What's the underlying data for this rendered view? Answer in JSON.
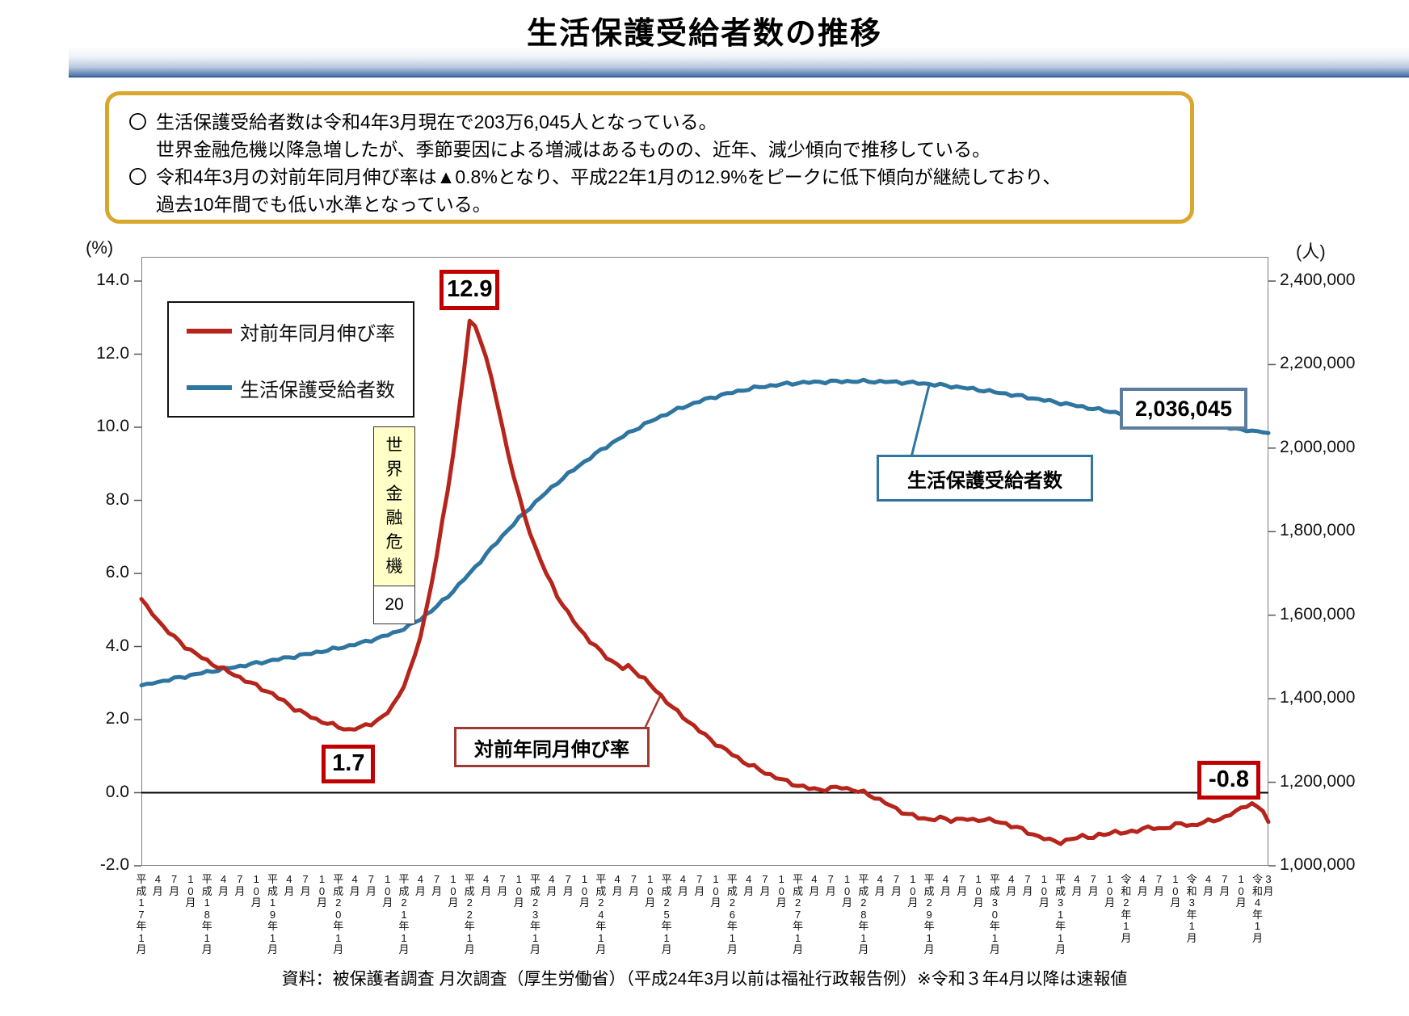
{
  "title": "生活保護受給者数の推移",
  "summary": {
    "bullet_marker": "〇",
    "b1l1": "生活保護受給者数は令和4年3月現在で203万6,045人となっている。",
    "b1l2": "世界金融危機以降急増したが、季節要因による増減はあるものの、近年、減少傾向で推移している。",
    "b2l1": "令和4年3月の対前年同月伸び率は▲0.8%となり、平成22年1月の12.9%をピークに低下傾向が継続しており、",
    "b2l2": "過去10年間でも低い水準となっている。"
  },
  "chart_data": {
    "type": "line",
    "title": "生活保護受給者数の推移",
    "left_axis": {
      "unit": "(%)",
      "min": -2.0,
      "max": 14.0,
      "ticks": [
        "14.0",
        "12.0",
        "10.0",
        "8.0",
        "6.0",
        "4.0",
        "2.0",
        "0.0",
        "-2.0"
      ]
    },
    "right_axis": {
      "unit": "(人)",
      "min": 1000000,
      "max": 2400000,
      "ticks": [
        "2,400,000",
        "2,200,000",
        "2,000,000",
        "1,800,000",
        "1,600,000",
        "1,400,000",
        "1,200,000",
        "1,000,000"
      ]
    },
    "x_start": "平成17年1月",
    "x_end": "令和4年3月",
    "months_total": 207,
    "x_labels": [
      "平成17年1月",
      "4月",
      "7月",
      "10月",
      "平成18年1月",
      "4月",
      "7月",
      "10月",
      "平成19年1月",
      "4月",
      "7月",
      "10月",
      "平成20年1月",
      "4月",
      "7月",
      "10月",
      "平成21年1月",
      "4月",
      "7月",
      "10月",
      "平成22年1月",
      "4月",
      "7月",
      "10月",
      "平成23年1月",
      "4月",
      "7月",
      "10月",
      "平成24年1月",
      "4月",
      "7月",
      "10月",
      "平成25年1月",
      "4月",
      "7月",
      "10月",
      "平成26年1月",
      "4月",
      "7月",
      "10月",
      "平成27年1月",
      "4月",
      "7月",
      "10月",
      "平成28年1月",
      "4月",
      "7月",
      "10月",
      "平成29年1月",
      "4月",
      "7月",
      "10月",
      "平成30年1月",
      "4月",
      "7月",
      "10月",
      "平成31年1月",
      "4月",
      "7月",
      "10月",
      "令和2年1月",
      "4月",
      "7月",
      "10月",
      "令和3年1月",
      "4月",
      "7月",
      "10月",
      "令和4年1月",
      "3月"
    ],
    "legend": [
      "対前年同月伸び率",
      "生活保護受給者数"
    ],
    "colors": {
      "growth_rate": "#B5251C",
      "recipients": "#2E75A0",
      "zero_line": "#000000",
      "annotation_red": "#C00000",
      "annotation_blue_gray": "#5B7E9E"
    },
    "series": [
      {
        "name": "対前年同月伸び率",
        "axis": "left",
        "unit": "%",
        "points": [
          [
            0,
            5.3
          ],
          [
            2,
            4.9
          ],
          [
            4,
            4.55
          ],
          [
            6,
            4.25
          ],
          [
            8,
            4.0
          ],
          [
            10,
            3.8
          ],
          [
            12,
            3.6
          ],
          [
            14,
            3.45
          ],
          [
            16,
            3.3
          ],
          [
            18,
            3.15
          ],
          [
            20,
            3.0
          ],
          [
            22,
            2.85
          ],
          [
            24,
            2.7
          ],
          [
            26,
            2.5
          ],
          [
            28,
            2.3
          ],
          [
            30,
            2.15
          ],
          [
            32,
            2.0
          ],
          [
            34,
            1.9
          ],
          [
            36,
            1.8
          ],
          [
            38,
            1.72
          ],
          [
            40,
            1.78
          ],
          [
            42,
            1.9
          ],
          [
            44,
            2.05
          ],
          [
            45,
            2.2
          ],
          [
            46,
            2.4
          ],
          [
            47,
            2.65
          ],
          [
            48,
            2.95
          ],
          [
            49,
            3.3
          ],
          [
            50,
            3.75
          ],
          [
            51,
            4.3
          ],
          [
            52,
            4.95
          ],
          [
            53,
            5.7
          ],
          [
            54,
            6.5
          ],
          [
            55,
            7.4
          ],
          [
            56,
            8.3
          ],
          [
            57,
            9.3
          ],
          [
            58,
            10.4
          ],
          [
            59,
            11.6
          ],
          [
            60,
            12.9
          ],
          [
            61,
            12.75
          ],
          [
            62,
            12.4
          ],
          [
            63,
            11.9
          ],
          [
            64,
            11.3
          ],
          [
            65,
            10.7
          ],
          [
            66,
            10.0
          ],
          [
            67,
            9.3
          ],
          [
            68,
            8.7
          ],
          [
            69,
            8.1
          ],
          [
            70,
            7.6
          ],
          [
            71,
            7.15
          ],
          [
            72,
            6.7
          ],
          [
            74,
            6.0
          ],
          [
            76,
            5.4
          ],
          [
            78,
            4.9
          ],
          [
            80,
            4.5
          ],
          [
            82,
            4.15
          ],
          [
            84,
            3.85
          ],
          [
            86,
            3.6
          ],
          [
            88,
            3.4
          ],
          [
            89,
            3.45
          ],
          [
            90,
            3.35
          ],
          [
            92,
            3.1
          ],
          [
            94,
            2.8
          ],
          [
            96,
            2.5
          ],
          [
            98,
            2.2
          ],
          [
            100,
            1.95
          ],
          [
            102,
            1.7
          ],
          [
            104,
            1.45
          ],
          [
            106,
            1.25
          ],
          [
            108,
            1.05
          ],
          [
            110,
            0.85
          ],
          [
            112,
            0.7
          ],
          [
            114,
            0.55
          ],
          [
            116,
            0.42
          ],
          [
            118,
            0.3
          ],
          [
            120,
            0.2
          ],
          [
            122,
            0.12
          ],
          [
            124,
            0.08
          ],
          [
            126,
            0.12
          ],
          [
            128,
            0.15
          ],
          [
            130,
            0.08
          ],
          [
            132,
            0.0
          ],
          [
            134,
            -0.12
          ],
          [
            136,
            -0.28
          ],
          [
            138,
            -0.45
          ],
          [
            140,
            -0.58
          ],
          [
            142,
            -0.68
          ],
          [
            144,
            -0.73
          ],
          [
            146,
            -0.7
          ],
          [
            148,
            -0.75
          ],
          [
            150,
            -0.71
          ],
          [
            152,
            -0.76
          ],
          [
            154,
            -0.72
          ],
          [
            156,
            -0.78
          ],
          [
            158,
            -0.85
          ],
          [
            160,
            -0.95
          ],
          [
            162,
            -1.08
          ],
          [
            164,
            -1.2
          ],
          [
            166,
            -1.3
          ],
          [
            168,
            -1.35
          ],
          [
            170,
            -1.28
          ],
          [
            172,
            -1.18
          ],
          [
            174,
            -1.22
          ],
          [
            176,
            -1.14
          ],
          [
            178,
            -1.06
          ],
          [
            180,
            -1.12
          ],
          [
            182,
            -1.02
          ],
          [
            184,
            -0.95
          ],
          [
            186,
            -1.0
          ],
          [
            188,
            -0.92
          ],
          [
            190,
            -0.85
          ],
          [
            192,
            -0.9
          ],
          [
            194,
            -0.82
          ],
          [
            196,
            -0.75
          ],
          [
            198,
            -0.68
          ],
          [
            200,
            -0.52
          ],
          [
            201,
            -0.42
          ],
          [
            202,
            -0.35
          ],
          [
            203,
            -0.3
          ],
          [
            204,
            -0.4
          ],
          [
            205,
            -0.5
          ],
          [
            206,
            -0.8
          ]
        ]
      },
      {
        "name": "生活保護受給者数",
        "axis": "right",
        "unit": "人",
        "points": [
          [
            0,
            1432000
          ],
          [
            6,
            1448000
          ],
          [
            12,
            1464000
          ],
          [
            18,
            1478000
          ],
          [
            24,
            1492000
          ],
          [
            30,
            1506000
          ],
          [
            36,
            1521000
          ],
          [
            40,
            1533000
          ],
          [
            44,
            1548000
          ],
          [
            47,
            1562000
          ],
          [
            50,
            1582000
          ],
          [
            53,
            1610000
          ],
          [
            56,
            1645000
          ],
          [
            58,
            1672000
          ],
          [
            60,
            1700000
          ],
          [
            62,
            1730000
          ],
          [
            64,
            1760000
          ],
          [
            66,
            1790000
          ],
          [
            68,
            1818000
          ],
          [
            70,
            1845000
          ],
          [
            72,
            1870000
          ],
          [
            74,
            1894000
          ],
          [
            76,
            1917000
          ],
          [
            78,
            1938000
          ],
          [
            80,
            1958000
          ],
          [
            82,
            1977000
          ],
          [
            84,
            1995000
          ],
          [
            86,
            2012000
          ],
          [
            88,
            2028000
          ],
          [
            90,
            2043000
          ],
          [
            92,
            2057000
          ],
          [
            94,
            2070000
          ],
          [
            96,
            2082000
          ],
          [
            98,
            2093000
          ],
          [
            100,
            2103000
          ],
          [
            102,
            2112000
          ],
          [
            104,
            2120000
          ],
          [
            106,
            2127000
          ],
          [
            108,
            2133000
          ],
          [
            110,
            2139000
          ],
          [
            112,
            2144000
          ],
          [
            114,
            2148000
          ],
          [
            116,
            2151000
          ],
          [
            118,
            2154000
          ],
          [
            120,
            2156000
          ],
          [
            122,
            2157500
          ],
          [
            124,
            2158500
          ],
          [
            126,
            2159200
          ],
          [
            128,
            2159800
          ],
          [
            130,
            2160000
          ],
          [
            132,
            2160000
          ],
          [
            134,
            2159500
          ],
          [
            136,
            2158800
          ],
          [
            138,
            2158000
          ],
          [
            140,
            2157000
          ],
          [
            142,
            2155500
          ],
          [
            144,
            2153500
          ],
          [
            146,
            2151000
          ],
          [
            148,
            2148000
          ],
          [
            150,
            2145000
          ],
          [
            152,
            2141500
          ],
          [
            154,
            2138000
          ],
          [
            156,
            2134000
          ],
          [
            158,
            2130000
          ],
          [
            160,
            2126000
          ],
          [
            162,
            2121500
          ],
          [
            164,
            2117000
          ],
          [
            166,
            2112500
          ],
          [
            168,
            2108000
          ],
          [
            170,
            2103500
          ],
          [
            172,
            2099000
          ],
          [
            174,
            2094500
          ],
          [
            176,
            2090000
          ],
          [
            178,
            2085500
          ],
          [
            180,
            2081000
          ],
          [
            182,
            2077000
          ],
          [
            184,
            2073000
          ],
          [
            186,
            2069000
          ],
          [
            188,
            2065000
          ],
          [
            190,
            2061500
          ],
          [
            192,
            2058000
          ],
          [
            194,
            2055000
          ],
          [
            196,
            2052000
          ],
          [
            198,
            2049000
          ],
          [
            200,
            2046000
          ],
          [
            202,
            2043000
          ],
          [
            204,
            2040000
          ],
          [
            205,
            2038000
          ],
          [
            206,
            2036045
          ]
        ]
      }
    ],
    "annotations": {
      "peak_value": "12.9",
      "peak_month": "平成22年1月",
      "trough_value": "1.7",
      "latest_rate": "-0.8",
      "latest_count": "2,036,045",
      "crisis_label": "世界金融危機",
      "crisis_sub": "20",
      "rate_callout": "対前年同月伸び率",
      "count_callout": "生活保護受給者数"
    },
    "source": "資料：被保護者調査 月次調査（厚生労働省）（平成24年3月以前は福祉行政報告例）※令和３年4月以降は速報値"
  }
}
